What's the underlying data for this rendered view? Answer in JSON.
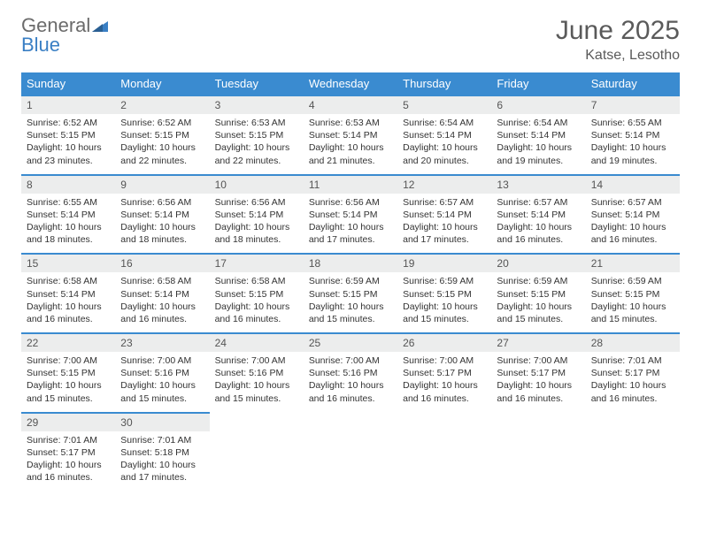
{
  "logo": {
    "word1": "General",
    "word2": "Blue",
    "color_gray": "#6b6b6b",
    "color_blue": "#3a7fc4"
  },
  "title": "June 2025",
  "location": "Katse, Lesotho",
  "colors": {
    "header_bg": "#3a8bd0",
    "header_text": "#ffffff",
    "daynum_bg": "#eceded",
    "row_divider": "#3a8bd0",
    "body_text": "#333333"
  },
  "fonts": {
    "title_size": 30,
    "location_size": 16,
    "dow_size": 13,
    "daynum_size": 12,
    "body_size": 10.5
  },
  "dow": [
    "Sunday",
    "Monday",
    "Tuesday",
    "Wednesday",
    "Thursday",
    "Friday",
    "Saturday"
  ],
  "weeks": [
    [
      {
        "n": 1,
        "sunrise": "6:52 AM",
        "sunset": "5:15 PM",
        "dl_h": 10,
        "dl_m": 23
      },
      {
        "n": 2,
        "sunrise": "6:52 AM",
        "sunset": "5:15 PM",
        "dl_h": 10,
        "dl_m": 22
      },
      {
        "n": 3,
        "sunrise": "6:53 AM",
        "sunset": "5:15 PM",
        "dl_h": 10,
        "dl_m": 22
      },
      {
        "n": 4,
        "sunrise": "6:53 AM",
        "sunset": "5:14 PM",
        "dl_h": 10,
        "dl_m": 21
      },
      {
        "n": 5,
        "sunrise": "6:54 AM",
        "sunset": "5:14 PM",
        "dl_h": 10,
        "dl_m": 20
      },
      {
        "n": 6,
        "sunrise": "6:54 AM",
        "sunset": "5:14 PM",
        "dl_h": 10,
        "dl_m": 19
      },
      {
        "n": 7,
        "sunrise": "6:55 AM",
        "sunset": "5:14 PM",
        "dl_h": 10,
        "dl_m": 19
      }
    ],
    [
      {
        "n": 8,
        "sunrise": "6:55 AM",
        "sunset": "5:14 PM",
        "dl_h": 10,
        "dl_m": 18
      },
      {
        "n": 9,
        "sunrise": "6:56 AM",
        "sunset": "5:14 PM",
        "dl_h": 10,
        "dl_m": 18
      },
      {
        "n": 10,
        "sunrise": "6:56 AM",
        "sunset": "5:14 PM",
        "dl_h": 10,
        "dl_m": 18
      },
      {
        "n": 11,
        "sunrise": "6:56 AM",
        "sunset": "5:14 PM",
        "dl_h": 10,
        "dl_m": 17
      },
      {
        "n": 12,
        "sunrise": "6:57 AM",
        "sunset": "5:14 PM",
        "dl_h": 10,
        "dl_m": 17
      },
      {
        "n": 13,
        "sunrise": "6:57 AM",
        "sunset": "5:14 PM",
        "dl_h": 10,
        "dl_m": 16
      },
      {
        "n": 14,
        "sunrise": "6:57 AM",
        "sunset": "5:14 PM",
        "dl_h": 10,
        "dl_m": 16
      }
    ],
    [
      {
        "n": 15,
        "sunrise": "6:58 AM",
        "sunset": "5:14 PM",
        "dl_h": 10,
        "dl_m": 16
      },
      {
        "n": 16,
        "sunrise": "6:58 AM",
        "sunset": "5:14 PM",
        "dl_h": 10,
        "dl_m": 16
      },
      {
        "n": 17,
        "sunrise": "6:58 AM",
        "sunset": "5:15 PM",
        "dl_h": 10,
        "dl_m": 16
      },
      {
        "n": 18,
        "sunrise": "6:59 AM",
        "sunset": "5:15 PM",
        "dl_h": 10,
        "dl_m": 15
      },
      {
        "n": 19,
        "sunrise": "6:59 AM",
        "sunset": "5:15 PM",
        "dl_h": 10,
        "dl_m": 15
      },
      {
        "n": 20,
        "sunrise": "6:59 AM",
        "sunset": "5:15 PM",
        "dl_h": 10,
        "dl_m": 15
      },
      {
        "n": 21,
        "sunrise": "6:59 AM",
        "sunset": "5:15 PM",
        "dl_h": 10,
        "dl_m": 15
      }
    ],
    [
      {
        "n": 22,
        "sunrise": "7:00 AM",
        "sunset": "5:15 PM",
        "dl_h": 10,
        "dl_m": 15
      },
      {
        "n": 23,
        "sunrise": "7:00 AM",
        "sunset": "5:16 PM",
        "dl_h": 10,
        "dl_m": 15
      },
      {
        "n": 24,
        "sunrise": "7:00 AM",
        "sunset": "5:16 PM",
        "dl_h": 10,
        "dl_m": 15
      },
      {
        "n": 25,
        "sunrise": "7:00 AM",
        "sunset": "5:16 PM",
        "dl_h": 10,
        "dl_m": 16
      },
      {
        "n": 26,
        "sunrise": "7:00 AM",
        "sunset": "5:17 PM",
        "dl_h": 10,
        "dl_m": 16
      },
      {
        "n": 27,
        "sunrise": "7:00 AM",
        "sunset": "5:17 PM",
        "dl_h": 10,
        "dl_m": 16
      },
      {
        "n": 28,
        "sunrise": "7:01 AM",
        "sunset": "5:17 PM",
        "dl_h": 10,
        "dl_m": 16
      }
    ],
    [
      {
        "n": 29,
        "sunrise": "7:01 AM",
        "sunset": "5:17 PM",
        "dl_h": 10,
        "dl_m": 16
      },
      {
        "n": 30,
        "sunrise": "7:01 AM",
        "sunset": "5:18 PM",
        "dl_h": 10,
        "dl_m": 17
      },
      null,
      null,
      null,
      null,
      null
    ]
  ],
  "labels": {
    "sunrise": "Sunrise:",
    "sunset": "Sunset:",
    "daylight": "Daylight:",
    "hours": "hours",
    "and": "and",
    "minutes": "minutes."
  }
}
